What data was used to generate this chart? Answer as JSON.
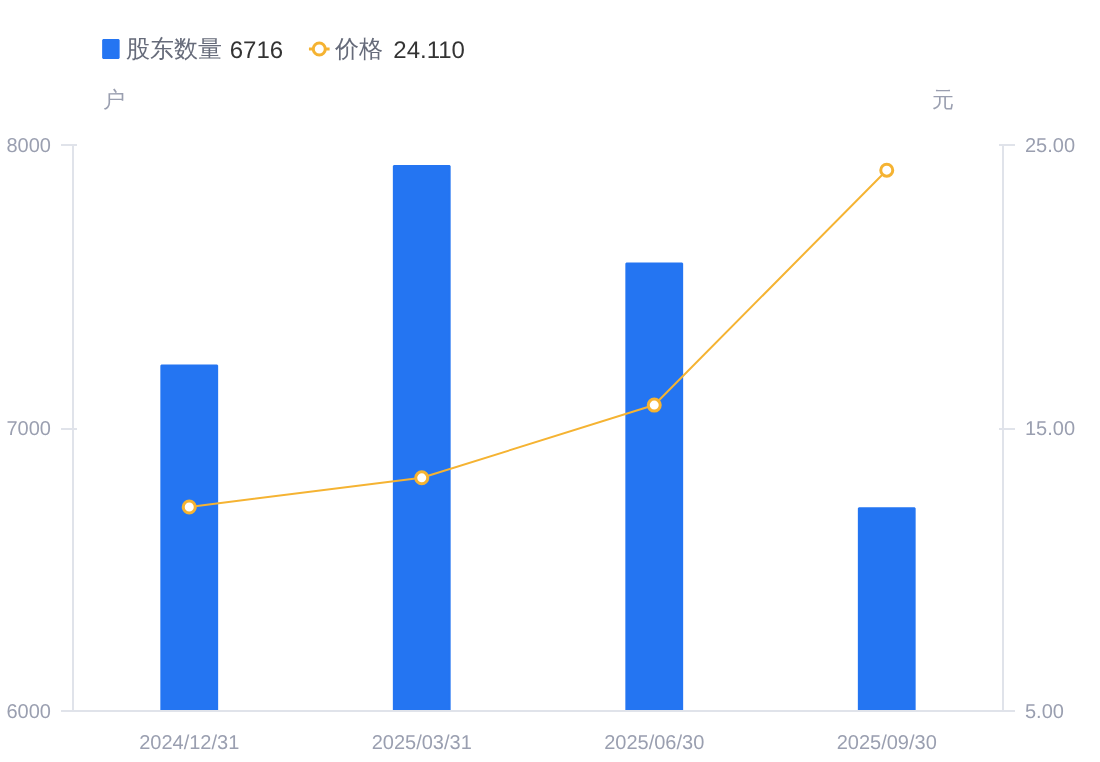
{
  "chart_data": {
    "type": "bar",
    "categories": [
      "2024/12/31",
      "2025/03/31",
      "2025/06/30",
      "2025/09/30"
    ],
    "ylabel": "户",
    "y2label": "元",
    "ylim": [
      6000,
      8000
    ],
    "yticks": [
      6000,
      7000,
      8000
    ],
    "y2lim": [
      5,
      25
    ],
    "y2ticks": [
      {
        "value": 5,
        "label": "5.00"
      },
      {
        "value": 15,
        "label": "15.00"
      },
      {
        "value": 25,
        "label": "25.00"
      }
    ],
    "series": [
      {
        "name": "股东数量",
        "color": "#2475f2",
        "values": [
          7221,
          7926,
          7581,
          6716
        ]
      },
      {
        "name": "价格",
        "type": "line",
        "axis": "y2",
        "color": "#f5b332",
        "marker": "circle",
        "values": [
          12.21,
          13.24,
          15.81,
          24.11
        ]
      }
    ],
    "annotations": [
      "6716",
      "24.110"
    ],
    "legend": "top left",
    "grid": false
  }
}
